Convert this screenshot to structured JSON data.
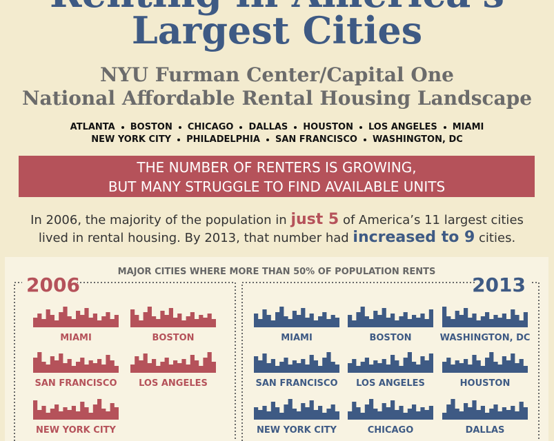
{
  "header": {
    "title_line1": "Renting in America's",
    "title_line2": "Largest Cities",
    "subtitle_line1": "NYU Furman Center/Capital One",
    "subtitle_line2": "National Affordable Rental Housing Landscape",
    "cities_row1": [
      "ATLANTA",
      "BOSTON",
      "CHICAGO",
      "DALLAS",
      "HOUSTON",
      "LOS ANGELES",
      "MIAMI"
    ],
    "cities_row2": [
      "NEW YORK CITY",
      "PHILADELPHIA",
      "SAN FRANCISCO",
      "WASHINGTON, DC"
    ]
  },
  "banner": {
    "line1": "THE NUMBER OF RENTERS IS GROWING,",
    "line2": "BUT MANY STRUGGLE TO FIND AVAILABLE UNITS"
  },
  "intro": {
    "line1": [
      "In 2006, the majority of the population in ",
      "just 5",
      " of America’s 11 largest cities"
    ],
    "line2": [
      "lived in rental housing. By 2013, that number had ",
      "increased to 9",
      " cities."
    ]
  },
  "panel": {
    "title": "MAJOR CITIES WHERE MORE THAN 50% OF POPULATION RENTS",
    "groups": [
      {
        "year": "2006",
        "cities": [
          "MIAMI",
          "BOSTON",
          "SAN FRANCISCO",
          "LOS ANGELES",
          "NEW YORK CITY"
        ]
      },
      {
        "year": "2013",
        "cities": [
          "MIAMI",
          "BOSTON",
          "WASHINGTON, DC",
          "SAN FRANCISCO",
          "LOS ANGELES",
          "HOUSTON",
          "NEW YORK CITY",
          "CHICAGO",
          "DALLAS"
        ]
      }
    ]
  }
}
